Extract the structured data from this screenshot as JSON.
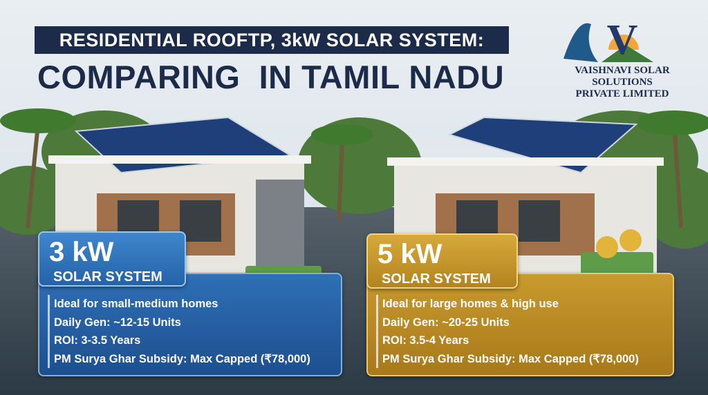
{
  "header": {
    "title_line1": "RESIDENTIAL ROOFTP, 3kW SOLAR SYSTEM:",
    "title_line2": "COMPARING  IN TAMIL NADU"
  },
  "logo": {
    "letter": "V",
    "name": "VAISHNAVI SOLAR SOLUTIONS",
    "subname": "PRIVATE LIMITED"
  },
  "cards": [
    {
      "size": "3 kW",
      "label": "SOLAR SYSTEM",
      "points": [
        "Ideal for small-medium homes",
        "Daily Gen: ~12-15 Units",
        "ROI: 3-3.5 Years",
        "PM Surya Ghar Subsidy: Max Capped (₹78,000)"
      ]
    },
    {
      "size": "5 kW",
      "label": "SOLAR SYSTEM",
      "points": [
        "Ideal for large homes & high use",
        "Daily Gen: ~20-25 Units",
        "ROI: 3.5-4 Years",
        "PM Surya Ghar Subsidy: Max Capped (₹78,000)"
      ]
    }
  ]
}
